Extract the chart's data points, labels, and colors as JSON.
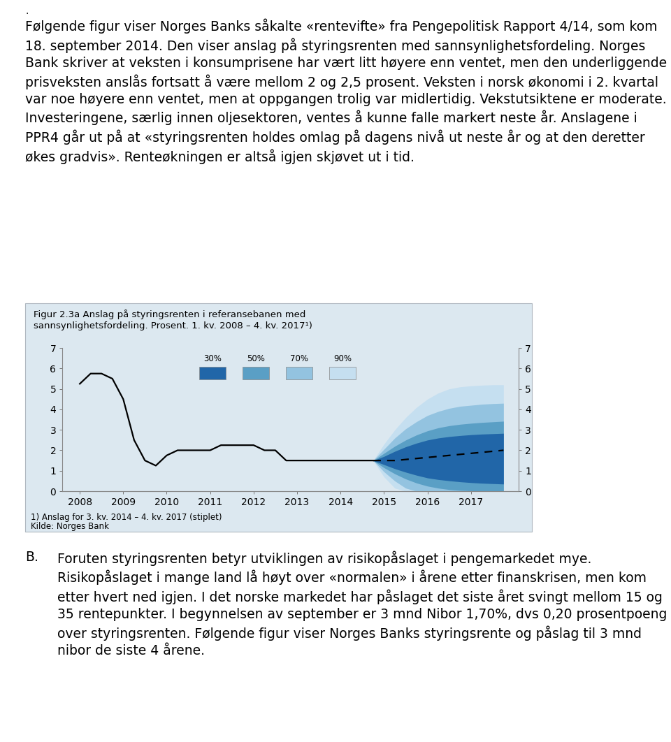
{
  "title_text": "Figur 2.3a Anslag på styringsrenten i referansebanen med\nsannsynlighetsfordeling. Prosent. 1. kv. 2008 – 4. kv. 2017¹)",
  "footnote1": "1) Anslag for 3. kv. 2014 – 4. kv. 2017 (stiplet)",
  "footnote2": "Kilde: Norges Bank",
  "box_bg_color": "#dce8f0",
  "plot_bg_color": "#dce8f0",
  "page_bg": "#ffffff",
  "ylim": [
    0,
    7
  ],
  "yticks": [
    0,
    1,
    2,
    3,
    4,
    5,
    6,
    7
  ],
  "xlabel_years": [
    2008,
    2009,
    2010,
    2011,
    2012,
    2013,
    2014,
    2015,
    2016,
    2017
  ],
  "historical_x": [
    2008.0,
    2008.25,
    2008.5,
    2008.75,
    2009.0,
    2009.25,
    2009.5,
    2009.75,
    2010.0,
    2010.25,
    2010.5,
    2010.75,
    2011.0,
    2011.25,
    2011.5,
    2011.75,
    2012.0,
    2012.25,
    2012.5,
    2012.75,
    2013.0,
    2013.25,
    2013.5,
    2013.75,
    2014.0,
    2014.25,
    2014.5,
    2014.75
  ],
  "historical_y": [
    5.25,
    5.75,
    5.75,
    5.5,
    4.5,
    2.5,
    1.5,
    1.25,
    1.75,
    2.0,
    2.0,
    2.0,
    2.0,
    2.25,
    2.25,
    2.25,
    2.25,
    2.0,
    2.0,
    1.5,
    1.5,
    1.5,
    1.5,
    1.5,
    1.5,
    1.5,
    1.5,
    1.5
  ],
  "forecast_x": [
    2014.75,
    2015.0,
    2015.25,
    2015.5,
    2015.75,
    2016.0,
    2016.25,
    2016.5,
    2016.75,
    2017.0,
    2017.25,
    2017.5,
    2017.75
  ],
  "forecast_mean": [
    1.5,
    1.5,
    1.5,
    1.55,
    1.6,
    1.65,
    1.7,
    1.75,
    1.8,
    1.85,
    1.9,
    1.95,
    2.0
  ],
  "band_90_upper": [
    1.5,
    2.3,
    3.0,
    3.6,
    4.1,
    4.5,
    4.8,
    5.0,
    5.1,
    5.15,
    5.18,
    5.2,
    5.2
  ],
  "band_90_lower": [
    1.5,
    0.7,
    0.15,
    0.0,
    0.0,
    0.0,
    0.0,
    0.0,
    0.0,
    0.0,
    0.0,
    0.0,
    0.0
  ],
  "band_70_upper": [
    1.5,
    2.05,
    2.6,
    3.05,
    3.4,
    3.7,
    3.9,
    4.05,
    4.15,
    4.2,
    4.25,
    4.28,
    4.3
  ],
  "band_70_lower": [
    1.5,
    0.95,
    0.5,
    0.15,
    0.0,
    0.0,
    0.0,
    0.0,
    0.0,
    0.0,
    0.0,
    0.0,
    0.0
  ],
  "band_50_upper": [
    1.5,
    1.85,
    2.2,
    2.5,
    2.75,
    2.95,
    3.1,
    3.2,
    3.27,
    3.32,
    3.36,
    3.39,
    3.42
  ],
  "band_50_lower": [
    1.5,
    1.15,
    0.85,
    0.6,
    0.4,
    0.25,
    0.15,
    0.08,
    0.04,
    0.02,
    0.0,
    0.0,
    0.0
  ],
  "band_30_upper": [
    1.5,
    1.7,
    1.95,
    2.17,
    2.35,
    2.5,
    2.6,
    2.67,
    2.72,
    2.76,
    2.79,
    2.81,
    2.83
  ],
  "band_30_lower": [
    1.5,
    1.3,
    1.1,
    0.93,
    0.78,
    0.65,
    0.57,
    0.51,
    0.46,
    0.42,
    0.39,
    0.37,
    0.35
  ],
  "color_90": "#c5dff0",
  "color_70": "#93c3e0",
  "color_50": "#5a9fc5",
  "color_30": "#2166a8",
  "line_color": "#000000",
  "legend_labels": [
    "30%",
    "50%",
    "70%",
    "90%"
  ],
  "legend_colors": [
    "#2166a8",
    "#5a9fc5",
    "#93c3e0",
    "#c5dff0"
  ],
  "para1": "Følgende figur viser Norges Banks såkalte «rentevifte» fra Pengepolitisk Rapport 4/14, som kom 18. september 2014. Den viser anslag på styringsrenten med sannsynlighetsfordeling. Norges Bank skriver at veksten i konsumprisene har vært litt høyere enn ventet, men den underliggende prisveksten anslås fortsatt å være mellom 2 og 2,5 prosent. Veksten i norsk økonomi i 2. kvartal var noe høyere enn ventet, men at oppgangen trolig var midlertidig. Vekstutsiktene er moderate. Investeringene, særlig innen oljesektoren, ventes å kunne falle markert neste år. Anslagene i PPR4 går ut på at «styringsrenten holdes omlag på dagens nivå ut neste år og at den deretter økes gradvis». Renteøkningen er altså igjen skjøvet ut i tid.",
  "para_B_label": "B.",
  "para_B_text": "Foruten styringsrenten betyr utviklingen av risikopåslaget i pengemarkedet mye. Risikopåslaget i mange land lå høyt over «normalen» i årene etter finanskrisen, men kom etter hvert ned igjen. I det norske markedet har påslaget det siste året svingt mellom 15 og 35 rentepunkter. I begynnelsen av september er 3 mnd Nibor 1,70%, dvs 0,20 prosentpoeng over styringsrenten. Følgende figur viser Norges Banks styringsrente og påslag til 3 mnd nibor de siste 4 årene.",
  "dot_top": "·",
  "text_font_size": 13.5,
  "title_font_size": 9.5,
  "chart_font_size": 10,
  "footnote_font_size": 8.5
}
